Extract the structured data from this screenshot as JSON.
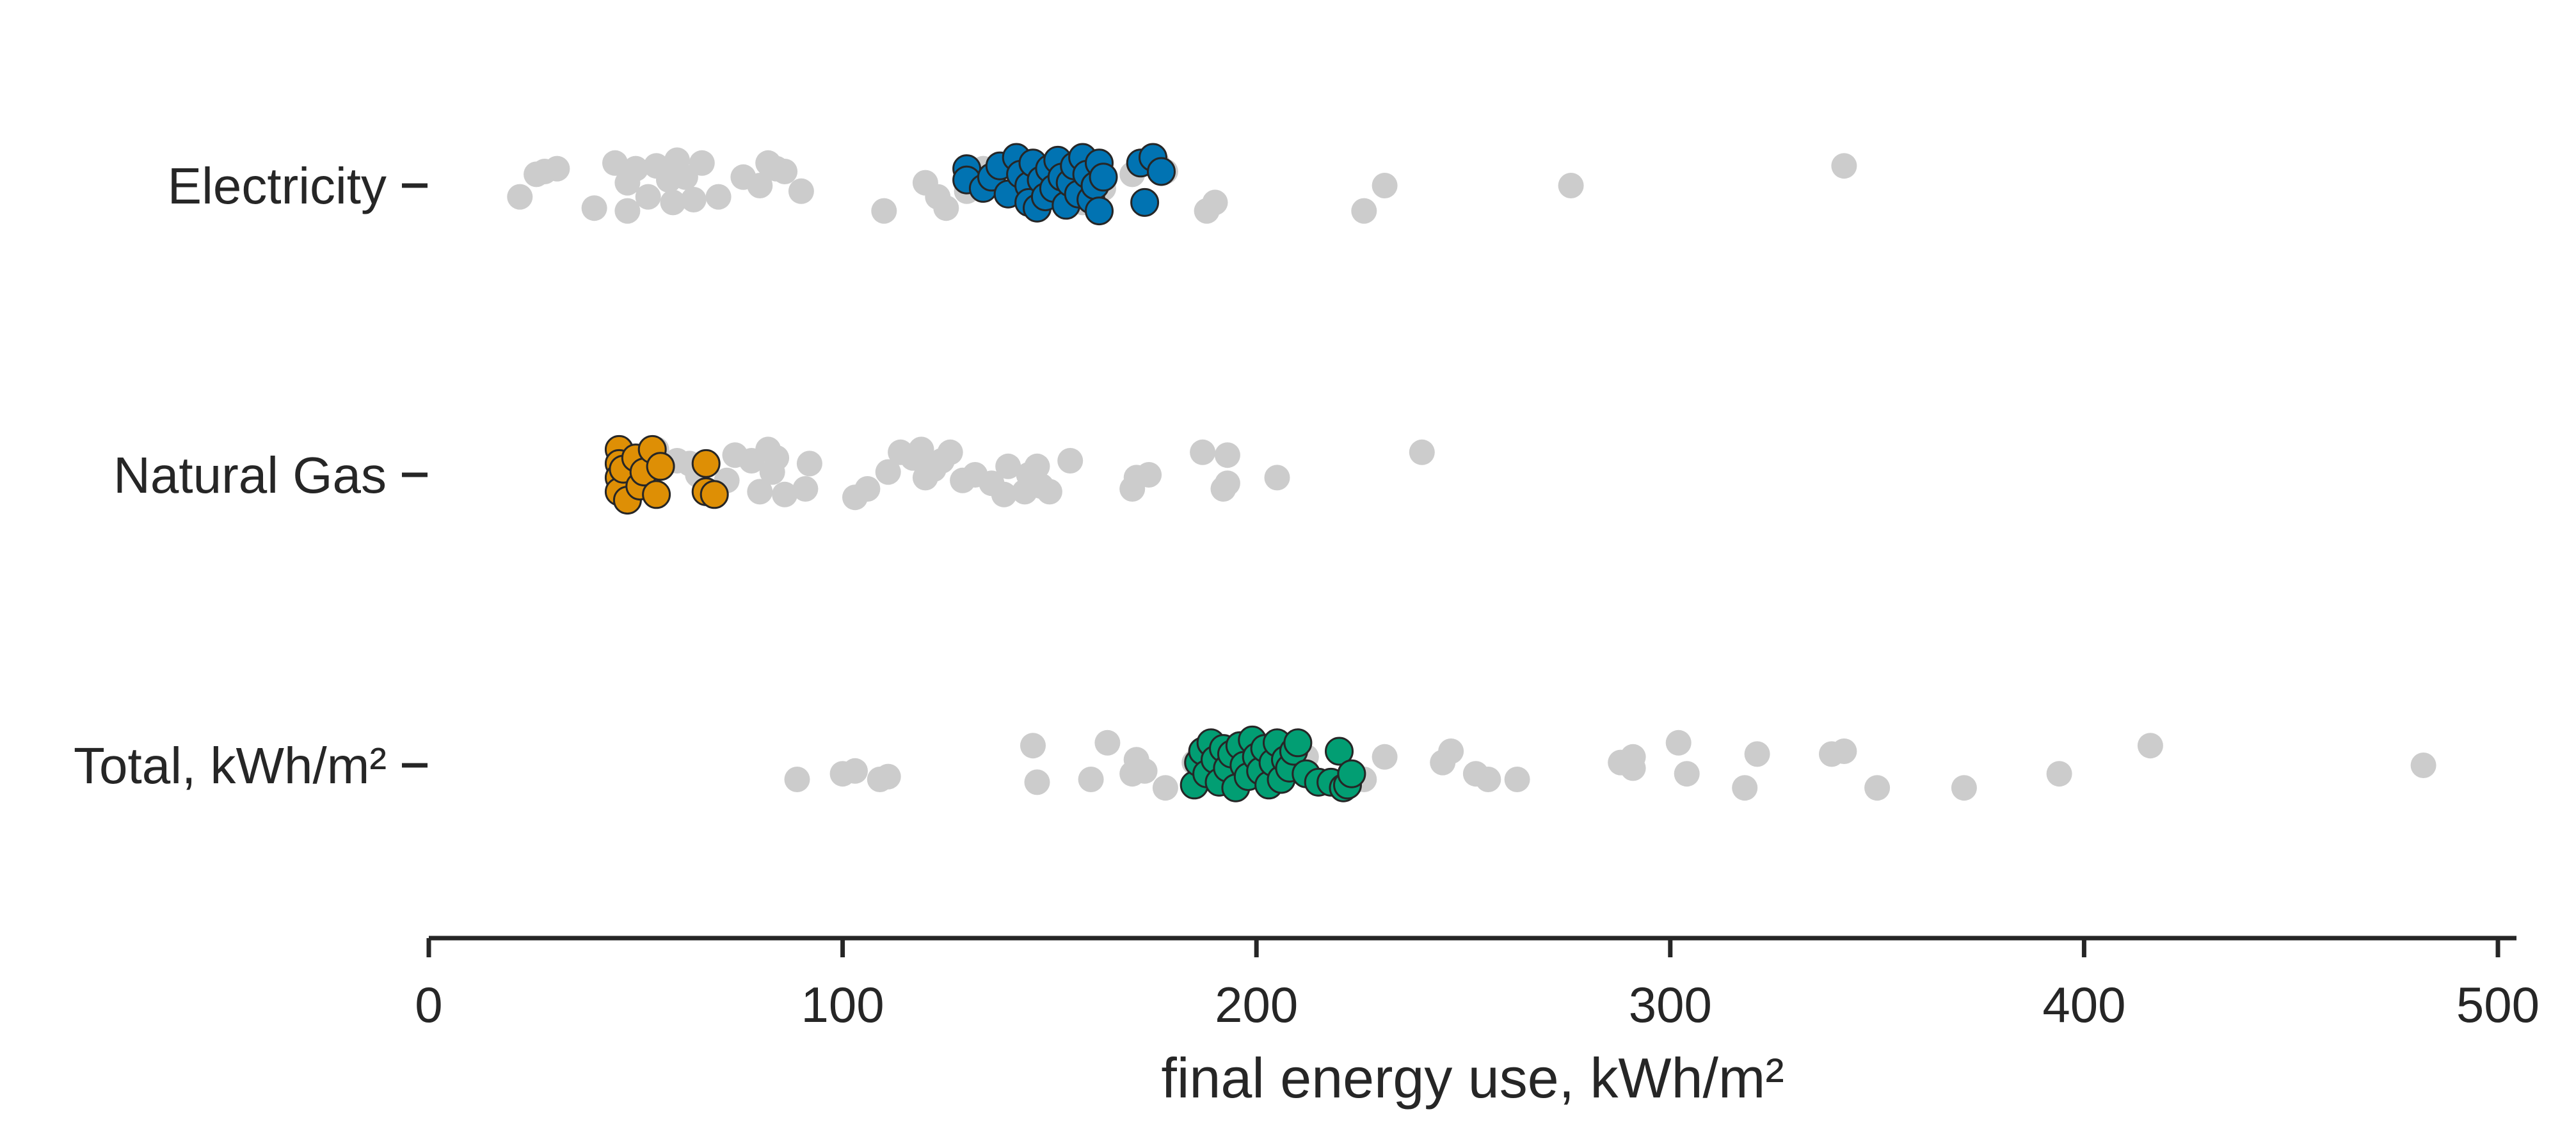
{
  "chart_data": {
    "type": "scatter",
    "subtype": "strip",
    "orientation": "horizontal",
    "categories": [
      "Electricity",
      "Natural Gas",
      "Total, kWh/m²"
    ],
    "xlabel": "final energy use, kWh/m²",
    "ylabel": "",
    "xlim": [
      0,
      500
    ],
    "xticks": [
      "0",
      "100",
      "200",
      "300",
      "400",
      "500"
    ],
    "grid": false,
    "legend": "none",
    "background_color": "#cccccc",
    "series": [
      {
        "category": "Electricity",
        "role": "background",
        "color": "#cccccc",
        "points": [
          [
            22,
            -0.4
          ],
          [
            26,
            0.4
          ],
          [
            28,
            0.5
          ],
          [
            31,
            0.6
          ],
          [
            40,
            -0.8
          ],
          [
            45,
            0.8
          ],
          [
            48,
            0.1
          ],
          [
            48,
            -0.9
          ],
          [
            50,
            0.6
          ],
          [
            53,
            -0.4
          ],
          [
            55,
            0.7
          ],
          [
            58,
            0.2
          ],
          [
            59,
            -0.6
          ],
          [
            60,
            0.9
          ],
          [
            62,
            0.3
          ],
          [
            64,
            -0.5
          ],
          [
            66,
            0.8
          ],
          [
            70,
            -0.4
          ],
          [
            76,
            0.3
          ],
          [
            80,
            0.0
          ],
          [
            82,
            0.8
          ],
          [
            84,
            0.6
          ],
          [
            86,
            0.5
          ],
          [
            90,
            -0.2
          ],
          [
            110,
            -0.9
          ],
          [
            120,
            0.1
          ],
          [
            123,
            -0.4
          ],
          [
            125,
            -0.8
          ],
          [
            130,
            -0.2
          ],
          [
            134,
            0.6
          ],
          [
            140,
            0.2
          ],
          [
            158,
            -0.6
          ],
          [
            163,
            -0.1
          ],
          [
            170,
            0.4
          ],
          [
            176,
            0.8
          ],
          [
            178,
            0.5
          ],
          [
            188,
            -0.9
          ],
          [
            190,
            -0.6
          ],
          [
            226,
            -0.9
          ],
          [
            231,
            0.0
          ],
          [
            276,
            0.0
          ],
          [
            342,
            0.7
          ]
        ]
      },
      {
        "category": "Electricity",
        "role": "highlight",
        "color": "#0173b2",
        "points": [
          [
            130,
            0.6
          ],
          [
            130,
            0.2
          ],
          [
            134,
            -0.1
          ],
          [
            136,
            0.3
          ],
          [
            138,
            0.7
          ],
          [
            140,
            -0.3
          ],
          [
            142,
            1.0
          ],
          [
            143,
            0.4
          ],
          [
            145,
            0.0
          ],
          [
            145,
            -0.6
          ],
          [
            146,
            0.8
          ],
          [
            147,
            -0.8
          ],
          [
            148,
            0.2
          ],
          [
            149,
            -0.4
          ],
          [
            150,
            0.6
          ],
          [
            151,
            -0.1
          ],
          [
            152,
            0.9
          ],
          [
            153,
            0.3
          ],
          [
            154,
            -0.7
          ],
          [
            155,
            0.1
          ],
          [
            156,
            0.7
          ],
          [
            157,
            -0.3
          ],
          [
            158,
            1.0
          ],
          [
            159,
            0.4
          ],
          [
            160,
            -0.5
          ],
          [
            161,
            0.0
          ],
          [
            162,
            0.8
          ],
          [
            162,
            -0.9
          ],
          [
            163,
            0.3
          ],
          [
            172,
            0.8
          ],
          [
            173,
            -0.6
          ],
          [
            175,
            1.0
          ],
          [
            177,
            0.5
          ]
        ]
      },
      {
        "category": "Natural Gas",
        "role": "background",
        "color": "#cccccc",
        "points": [
          [
            46,
            0.8
          ],
          [
            55,
            0.9
          ],
          [
            60,
            0.5
          ],
          [
            63,
            0.4
          ],
          [
            65,
            0.0
          ],
          [
            72,
            -0.2
          ],
          [
            74,
            0.7
          ],
          [
            78,
            0.5
          ],
          [
            80,
            -0.6
          ],
          [
            82,
            0.9
          ],
          [
            83,
            0.1
          ],
          [
            84,
            0.6
          ],
          [
            86,
            -0.7
          ],
          [
            91,
            -0.5
          ],
          [
            92,
            0.4
          ],
          [
            103,
            -0.8
          ],
          [
            106,
            -0.5
          ],
          [
            111,
            0.1
          ],
          [
            114,
            0.8
          ],
          [
            117,
            0.6
          ],
          [
            119,
            0.9
          ],
          [
            120,
            -0.1
          ],
          [
            122,
            0.2
          ],
          [
            124,
            0.5
          ],
          [
            126,
            0.8
          ],
          [
            129,
            -0.2
          ],
          [
            132,
            0.0
          ],
          [
            136,
            -0.3
          ],
          [
            139,
            -0.7
          ],
          [
            140,
            0.3
          ],
          [
            144,
            -0.6
          ],
          [
            145,
            0.0
          ],
          [
            147,
            0.3
          ],
          [
            148,
            -0.4
          ],
          [
            150,
            -0.6
          ],
          [
            155,
            0.5
          ],
          [
            170,
            -0.5
          ],
          [
            171,
            -0.1
          ],
          [
            174,
            0.0
          ],
          [
            187,
            0.8
          ],
          [
            192,
            -0.5
          ],
          [
            193,
            0.7
          ],
          [
            193,
            -0.3
          ],
          [
            205,
            -0.1
          ],
          [
            240,
            0.8
          ]
        ]
      },
      {
        "category": "Natural Gas",
        "role": "highlight",
        "color": "#de8f05",
        "points": [
          [
            46,
            0.9
          ],
          [
            46,
            0.4
          ],
          [
            46,
            -0.1
          ],
          [
            46,
            -0.6
          ],
          [
            47,
            0.2
          ],
          [
            48,
            -0.9
          ],
          [
            50,
            0.6
          ],
          [
            51,
            -0.4
          ],
          [
            52,
            0.1
          ],
          [
            54,
            0.9
          ],
          [
            55,
            -0.7
          ],
          [
            56,
            0.3
          ],
          [
            67,
            0.4
          ],
          [
            67,
            -0.6
          ],
          [
            69,
            -0.7
          ]
        ]
      },
      {
        "category": "Total, kWh/m²",
        "role": "background",
        "color": "#cccccc",
        "points": [
          [
            89,
            -0.5
          ],
          [
            100,
            -0.3
          ],
          [
            103,
            -0.2
          ],
          [
            109,
            -0.5
          ],
          [
            111,
            -0.4
          ],
          [
            146,
            0.7
          ],
          [
            147,
            -0.6
          ],
          [
            160,
            -0.5
          ],
          [
            164,
            0.8
          ],
          [
            170,
            -0.3
          ],
          [
            171,
            0.2
          ],
          [
            173,
            -0.2
          ],
          [
            178,
            -0.8
          ],
          [
            185,
            0.1
          ],
          [
            191,
            -0.6
          ],
          [
            194,
            0.5
          ],
          [
            197,
            0.0
          ],
          [
            200,
            -0.3
          ],
          [
            203,
            0.7
          ],
          [
            206,
            0.2
          ],
          [
            209,
            -0.2
          ],
          [
            212,
            0.3
          ],
          [
            214,
            -0.5
          ],
          [
            226,
            -0.5
          ],
          [
            231,
            0.3
          ],
          [
            245,
            0.1
          ],
          [
            247,
            0.5
          ],
          [
            253,
            -0.3
          ],
          [
            256,
            -0.5
          ],
          [
            263,
            -0.5
          ],
          [
            288,
            0.1
          ],
          [
            291,
            0.3
          ],
          [
            291,
            -0.1
          ],
          [
            302,
            0.8
          ],
          [
            304,
            -0.3
          ],
          [
            318,
            -0.8
          ],
          [
            321,
            0.4
          ],
          [
            339,
            0.4
          ],
          [
            342,
            0.5
          ],
          [
            350,
            -0.8
          ],
          [
            371,
            -0.8
          ],
          [
            394,
            -0.3
          ],
          [
            416,
            0.7
          ],
          [
            482,
            0.0
          ]
        ]
      },
      {
        "category": "Total, kWh/m²",
        "role": "highlight",
        "color": "#029e73",
        "points": [
          [
            185,
            -0.7
          ],
          [
            186,
            0.1
          ],
          [
            187,
            0.5
          ],
          [
            188,
            -0.3
          ],
          [
            189,
            0.8
          ],
          [
            190,
            0.2
          ],
          [
            191,
            -0.6
          ],
          [
            192,
            0.6
          ],
          [
            193,
            -0.1
          ],
          [
            194,
            0.4
          ],
          [
            195,
            -0.8
          ],
          [
            196,
            0.7
          ],
          [
            197,
            0.0
          ],
          [
            198,
            -0.4
          ],
          [
            199,
            0.9
          ],
          [
            200,
            0.3
          ],
          [
            201,
            -0.2
          ],
          [
            202,
            0.6
          ],
          [
            203,
            -0.7
          ],
          [
            204,
            0.1
          ],
          [
            205,
            0.8
          ],
          [
            206,
            -0.5
          ],
          [
            207,
            0.2
          ],
          [
            208,
            -0.1
          ],
          [
            209,
            0.5
          ],
          [
            210,
            0.8
          ],
          [
            212,
            -0.3
          ],
          [
            215,
            -0.6
          ],
          [
            218,
            -0.6
          ],
          [
            220,
            0.5
          ],
          [
            221,
            -0.8
          ],
          [
            222,
            -0.7
          ],
          [
            223,
            -0.3
          ]
        ]
      }
    ]
  }
}
